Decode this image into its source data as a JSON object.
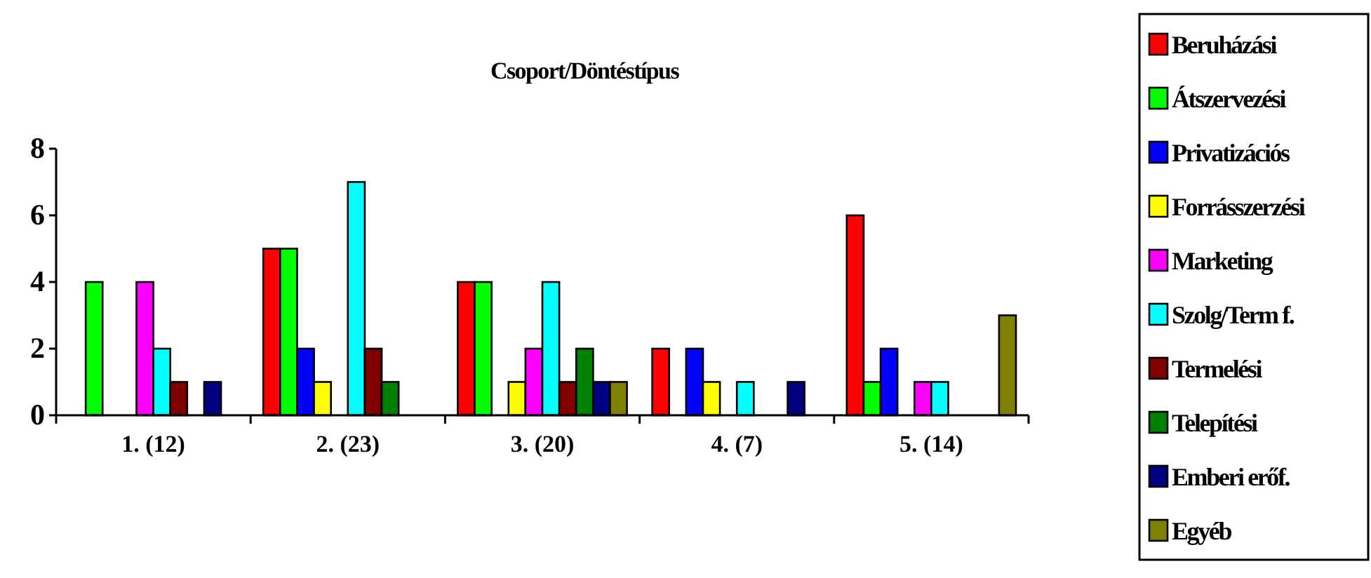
{
  "chart_data": {
    "type": "bar",
    "title": "Csoport/Döntéstípus",
    "categories": [
      "1. (12)",
      "2. (23)",
      "3. (20)",
      "4. (7)",
      "5. (14)"
    ],
    "ylim": [
      0,
      8
    ],
    "yticks": [
      0,
      2,
      4,
      6,
      8
    ],
    "grid": false,
    "legend": "right",
    "series": [
      {
        "name": "Beruházási",
        "color": "#ff0000",
        "values": [
          0,
          5,
          4,
          2,
          6
        ]
      },
      {
        "name": "Átszervezési",
        "color": "#00ff00",
        "values": [
          4,
          5,
          4,
          0,
          1
        ]
      },
      {
        "name": "Privatizációs",
        "color": "#0000ff",
        "values": [
          0,
          2,
          0,
          2,
          2
        ]
      },
      {
        "name": "Forrásszerzési",
        "color": "#ffff00",
        "values": [
          0,
          1,
          1,
          1,
          0
        ]
      },
      {
        "name": "Marketing",
        "color": "#ff00ff",
        "values": [
          4,
          0,
          2,
          0,
          1
        ]
      },
      {
        "name": "Szolg/Term f.",
        "color": "#00ffff",
        "values": [
          2,
          7,
          4,
          1,
          1
        ]
      },
      {
        "name": "Termelési",
        "color": "#800000",
        "values": [
          1,
          2,
          1,
          0,
          0
        ]
      },
      {
        "name": "Telepítési",
        "color": "#008000",
        "values": [
          0,
          1,
          2,
          0,
          0
        ]
      },
      {
        "name": "Emberi erőf.",
        "color": "#000080",
        "values": [
          1,
          0,
          1,
          1,
          0
        ]
      },
      {
        "name": "Egyéb",
        "color": "#808000",
        "values": [
          0,
          0,
          1,
          0,
          3
        ]
      }
    ]
  }
}
